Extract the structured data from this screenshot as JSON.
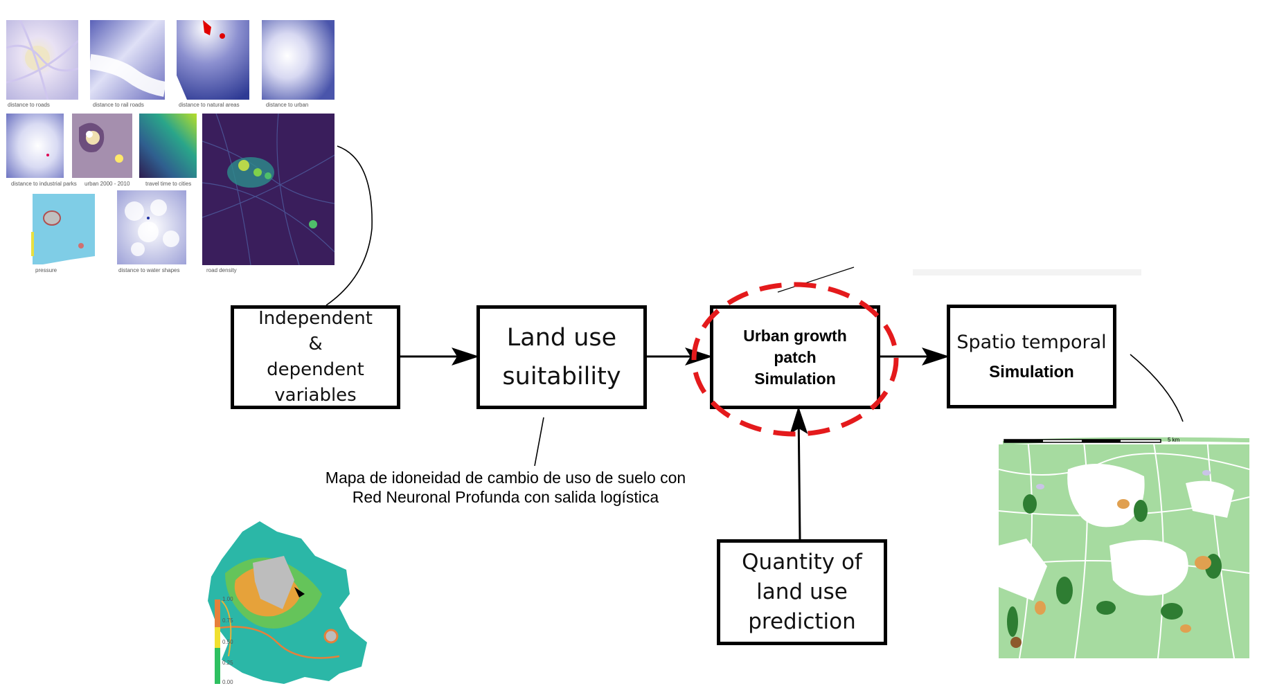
{
  "thumbnails": [
    {
      "label": "distance to roads"
    },
    {
      "label": "distance to rail roads"
    },
    {
      "label": "distance to natural areas"
    },
    {
      "label": "distance to urban"
    },
    {
      "label": "distance to industrial parks"
    },
    {
      "label": "urban 2000 - 2010"
    },
    {
      "label": "travel time to cities"
    },
    {
      "label": "pressure"
    },
    {
      "label": "distance to water shapes"
    },
    {
      "label": "road density"
    }
  ],
  "boxes": {
    "independent": {
      "lines": [
        "Independent",
        "&",
        "dependent",
        "variables"
      ]
    },
    "suitability": {
      "lines": [
        "Land use",
        "suitability"
      ]
    },
    "urban_growth": {
      "lines": [
        "Urban growth",
        "patch",
        "Simulation"
      ]
    },
    "spatio": {
      "line1": "Spatio temporal",
      "line2": "Simulation"
    },
    "quantity": {
      "lines": [
        "Quantity of",
        "land use",
        "prediction"
      ]
    }
  },
  "caption": {
    "line1": "Mapa de idoneidad de cambio de uso de suelo con",
    "line2": "Red Neuronal Profunda con salida logística"
  },
  "suitability_map": {
    "legend_ticks": [
      "1.00",
      "0.75",
      "0.50",
      "0.25",
      "0.00"
    ]
  },
  "simulation_map": {
    "scale_label": "5 km"
  },
  "colors": {
    "highlight_ellipse": "#e41a1c",
    "box_border": "#000000"
  }
}
